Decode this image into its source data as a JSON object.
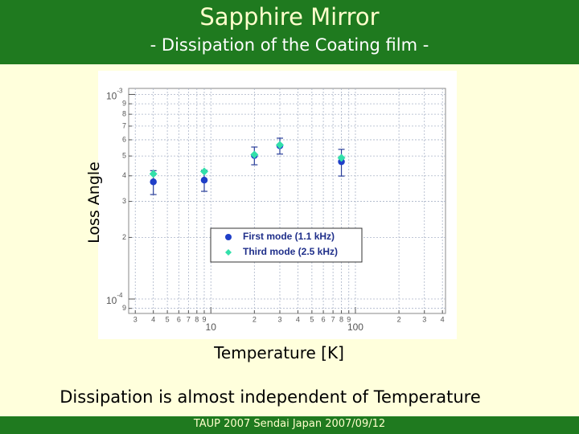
{
  "slide": {
    "title": "Sapphire Mirror",
    "subtitle": "- Dissipation of the Coating film -",
    "caption": "Dissipation is almost independent of Temperature",
    "footer": "TAUP 2007 Sendai Japan 2007/09/12"
  },
  "chart_data": {
    "type": "scatter",
    "x_label": "Temperature [K]",
    "y_label": "Loss Angle",
    "xscale": "log",
    "yscale": "log",
    "grid": true,
    "legend": "lower center",
    "xlim": [
      2.7,
      420
    ],
    "ylim": [
      8.5e-05,
      0.00107
    ],
    "xticks": [
      3,
      4,
      5,
      6,
      7,
      8,
      9,
      10,
      {
        "value": 20,
        "label": "2"
      },
      {
        "value": 30,
        "label": "3"
      },
      {
        "value": 40,
        "label": "4"
      },
      {
        "value": 50,
        "label": "5"
      },
      {
        "value": 60,
        "label": "6"
      },
      {
        "value": 70,
        "label": "7"
      },
      {
        "value": 80,
        "label": "8"
      },
      {
        "value": 90,
        "label": "9"
      },
      100,
      {
        "value": 200,
        "label": "2"
      },
      {
        "value": 300,
        "label": "3"
      },
      {
        "value": 400,
        "label": "4"
      }
    ],
    "yticks": [
      {
        "value": 0.0001,
        "label": "10",
        "exponent": "-4"
      },
      {
        "value": 0.0002,
        "label": "2"
      },
      {
        "value": 0.0003,
        "label": "3"
      },
      {
        "value": 0.0004,
        "label": "4"
      },
      {
        "value": 0.0005,
        "label": "5"
      },
      {
        "value": 0.0006,
        "label": "6"
      },
      {
        "value": 0.0007,
        "label": "7"
      },
      {
        "value": 0.0008,
        "label": "8"
      },
      {
        "value": 0.0009,
        "label": "9"
      },
      {
        "value": 0.001,
        "label": "10",
        "exponent": "-3"
      },
      {
        "value": 9e-05,
        "label": "9"
      }
    ],
    "series": [
      {
        "name": "First mode (1.1 kHz)",
        "color": "#1f3fc8",
        "marker": "circle",
        "x": [
          4,
          9,
          20,
          30,
          80
        ],
        "values": [
          0.000374,
          0.000381,
          0.000503,
          0.000561,
          0.000469
        ],
        "errors": [
          5e-05,
          4.5e-05,
          5e-05,
          5e-05,
          7e-05
        ]
      },
      {
        "name": "Third mode (2.5 kHz)",
        "color": "#33e0aa",
        "marker": "diamond",
        "x": [
          4,
          9,
          20,
          30,
          80
        ],
        "values": [
          0.000409,
          0.00042,
          0.000508,
          0.000566,
          0.00049
        ]
      }
    ]
  }
}
